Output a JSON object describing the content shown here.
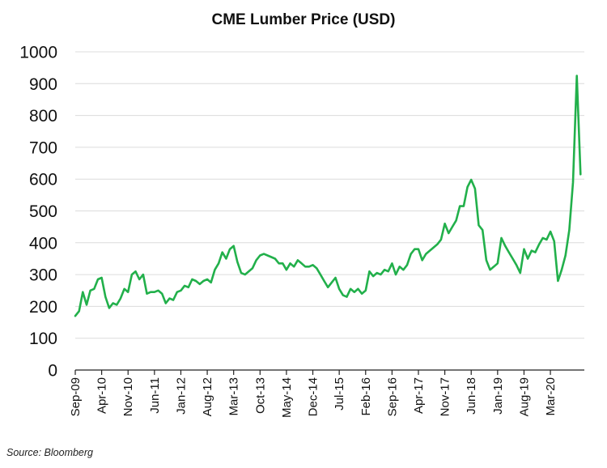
{
  "chart_data": {
    "type": "line",
    "title": "CME Lumber Price (USD)",
    "xlabel": "",
    "ylabel": "",
    "ylim": [
      0,
      1000
    ],
    "yticks": [
      0,
      100,
      200,
      300,
      400,
      500,
      600,
      700,
      800,
      900,
      1000
    ],
    "grid": "horizontal",
    "x_tick_labels": [
      "Sep-09",
      "Apr-10",
      "Nov-10",
      "Jun-11",
      "Jan-12",
      "Aug-12",
      "Mar-13",
      "Oct-13",
      "May-14",
      "Dec-14",
      "Jul-15",
      "Feb-16",
      "Sep-16",
      "Apr-17",
      "Nov-17",
      "Jun-18",
      "Jan-19",
      "Aug-19",
      "Mar-20"
    ],
    "series": [
      {
        "color": "#22b04b",
        "points": [
          [
            "2009-09",
            170
          ],
          [
            "2009-10",
            185
          ],
          [
            "2009-11",
            245
          ],
          [
            "2009-12",
            205
          ],
          [
            "2010-01",
            250
          ],
          [
            "2010-02",
            255
          ],
          [
            "2010-03",
            285
          ],
          [
            "2010-04",
            290
          ],
          [
            "2010-05",
            230
          ],
          [
            "2010-06",
            195
          ],
          [
            "2010-07",
            210
          ],
          [
            "2010-08",
            205
          ],
          [
            "2010-09",
            225
          ],
          [
            "2010-10",
            255
          ],
          [
            "2010-11",
            245
          ],
          [
            "2010-12",
            300
          ],
          [
            "2011-01",
            310
          ],
          [
            "2011-02",
            285
          ],
          [
            "2011-03",
            300
          ],
          [
            "2011-04",
            240
          ],
          [
            "2011-05",
            245
          ],
          [
            "2011-06",
            245
          ],
          [
            "2011-07",
            250
          ],
          [
            "2011-08",
            240
          ],
          [
            "2011-09",
            210
          ],
          [
            "2011-10",
            225
          ],
          [
            "2011-11",
            220
          ],
          [
            "2011-12",
            245
          ],
          [
            "2012-01",
            250
          ],
          [
            "2012-02",
            265
          ],
          [
            "2012-03",
            260
          ],
          [
            "2012-04",
            285
          ],
          [
            "2012-05",
            280
          ],
          [
            "2012-06",
            270
          ],
          [
            "2012-07",
            280
          ],
          [
            "2012-08",
            285
          ],
          [
            "2012-09",
            275
          ],
          [
            "2012-10",
            315
          ],
          [
            "2012-11",
            335
          ],
          [
            "2012-12",
            370
          ],
          [
            "2013-01",
            350
          ],
          [
            "2013-02",
            380
          ],
          [
            "2013-03",
            390
          ],
          [
            "2013-04",
            340
          ],
          [
            "2013-05",
            305
          ],
          [
            "2013-06",
            300
          ],
          [
            "2013-07",
            310
          ],
          [
            "2013-08",
            320
          ],
          [
            "2013-09",
            345
          ],
          [
            "2013-10",
            360
          ],
          [
            "2013-11",
            365
          ],
          [
            "2013-12",
            360
          ],
          [
            "2014-01",
            355
          ],
          [
            "2014-02",
            350
          ],
          [
            "2014-03",
            335
          ],
          [
            "2014-04",
            335
          ],
          [
            "2014-05",
            315
          ],
          [
            "2014-06",
            335
          ],
          [
            "2014-07",
            325
          ],
          [
            "2014-08",
            345
          ],
          [
            "2014-09",
            335
          ],
          [
            "2014-10",
            325
          ],
          [
            "2014-11",
            325
          ],
          [
            "2014-12",
            330
          ],
          [
            "2015-01",
            320
          ],
          [
            "2015-02",
            300
          ],
          [
            "2015-03",
            280
          ],
          [
            "2015-04",
            260
          ],
          [
            "2015-05",
            275
          ],
          [
            "2015-06",
            290
          ],
          [
            "2015-07",
            255
          ],
          [
            "2015-08",
            235
          ],
          [
            "2015-09",
            230
          ],
          [
            "2015-10",
            255
          ],
          [
            "2015-11",
            245
          ],
          [
            "2015-12",
            255
          ],
          [
            "2016-01",
            240
          ],
          [
            "2016-02",
            250
          ],
          [
            "2016-03",
            310
          ],
          [
            "2016-04",
            295
          ],
          [
            "2016-05",
            305
          ],
          [
            "2016-06",
            300
          ],
          [
            "2016-07",
            315
          ],
          [
            "2016-08",
            310
          ],
          [
            "2016-09",
            335
          ],
          [
            "2016-10",
            300
          ],
          [
            "2016-11",
            325
          ],
          [
            "2016-12",
            315
          ],
          [
            "2017-01",
            330
          ],
          [
            "2017-02",
            365
          ],
          [
            "2017-03",
            380
          ],
          [
            "2017-04",
            380
          ],
          [
            "2017-05",
            345
          ],
          [
            "2017-06",
            365
          ],
          [
            "2017-07",
            375
          ],
          [
            "2017-08",
            385
          ],
          [
            "2017-09",
            395
          ],
          [
            "2017-10",
            410
          ],
          [
            "2017-11",
            460
          ],
          [
            "2017-12",
            430
          ],
          [
            "2018-01",
            450
          ],
          [
            "2018-02",
            470
          ],
          [
            "2018-03",
            515
          ],
          [
            "2018-04",
            515
          ],
          [
            "2018-05",
            575
          ],
          [
            "2018-06",
            598
          ],
          [
            "2018-07",
            570
          ],
          [
            "2018-08",
            455
          ],
          [
            "2018-09",
            440
          ],
          [
            "2018-10",
            345
          ],
          [
            "2018-11",
            315
          ],
          [
            "2018-12",
            325
          ],
          [
            "2019-01",
            335
          ],
          [
            "2019-02",
            415
          ],
          [
            "2019-03",
            390
          ],
          [
            "2019-04",
            370
          ],
          [
            "2019-05",
            350
          ],
          [
            "2019-06",
            330
          ],
          [
            "2019-07",
            305
          ],
          [
            "2019-08",
            380
          ],
          [
            "2019-09",
            350
          ],
          [
            "2019-10",
            375
          ],
          [
            "2019-11",
            370
          ],
          [
            "2019-12",
            395
          ],
          [
            "2020-01",
            415
          ],
          [
            "2020-02",
            410
          ],
          [
            "2020-03",
            435
          ],
          [
            "2020-04",
            405
          ],
          [
            "2020-05",
            280
          ],
          [
            "2020-06",
            315
          ],
          [
            "2020-07",
            360
          ],
          [
            "2020-08",
            440
          ],
          [
            "2020-09",
            590
          ],
          [
            "2020-10",
            925
          ],
          [
            "2020-11",
            615
          ]
        ]
      }
    ]
  },
  "source": "Source: Bloomberg"
}
